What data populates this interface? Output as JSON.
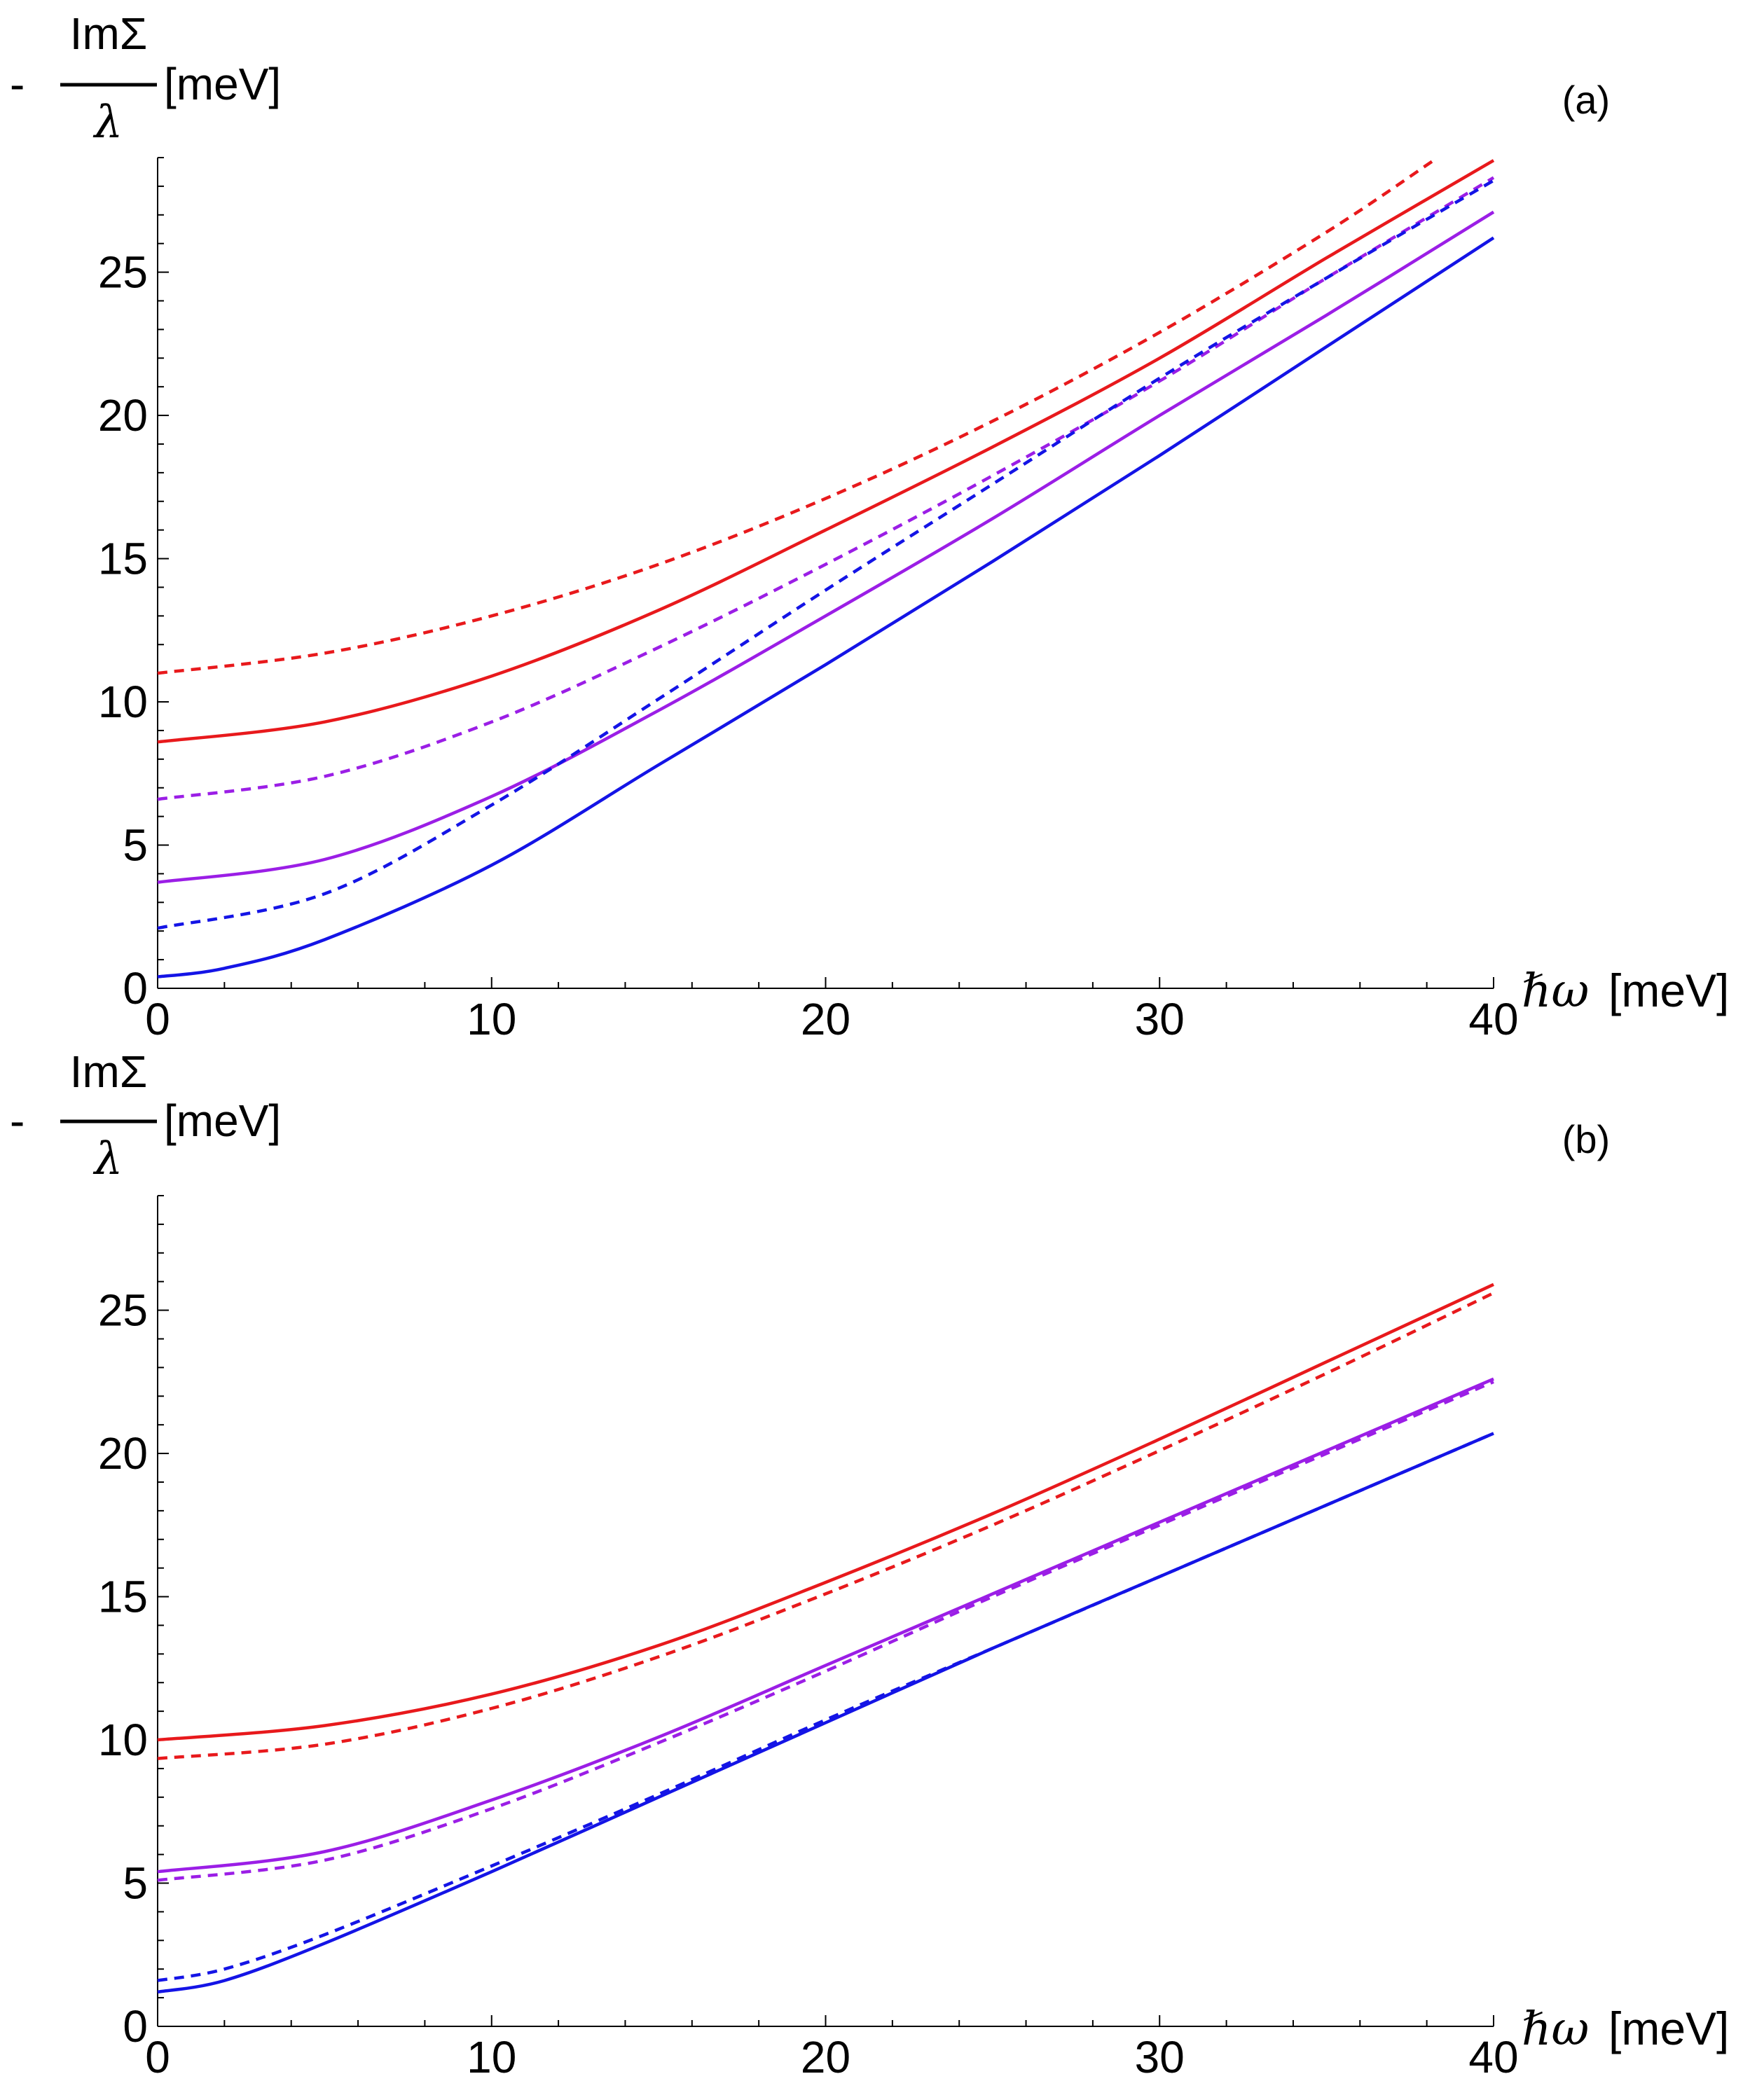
{
  "chart_data": [
    {
      "type": "line",
      "panel_label": "(a)",
      "ylabel": {
        "sign": "-",
        "numerator": "ImΣ",
        "denominator": "λ",
        "unit": "[meV]"
      },
      "xlabel": {
        "symbol": "ℏω",
        "unit": "[meV]"
      },
      "xlim": [
        0,
        40
      ],
      "ylim": [
        0,
        29
      ],
      "x_ticks": [
        "0",
        "10",
        "20",
        "30",
        "40"
      ],
      "y_ticks": [
        "0",
        "5",
        "10",
        "15",
        "20",
        "25"
      ],
      "x_tick_values": [
        0,
        10,
        20,
        30,
        40
      ],
      "y_tick_values": [
        0,
        5,
        10,
        15,
        20,
        25
      ],
      "series": [
        {
          "name": "red solid",
          "color": "#e8191c",
          "style": "solid",
          "x": [
            0,
            5,
            10,
            15,
            20,
            25,
            30,
            35,
            40
          ],
          "y": [
            8.6,
            9.3,
            10.9,
            13.2,
            16.0,
            18.9,
            22.0,
            25.5,
            28.9
          ]
        },
        {
          "name": "red dashed",
          "color": "#e8191c",
          "style": "dashed",
          "x": [
            0,
            5,
            10,
            15,
            20,
            25,
            30,
            35,
            38.2
          ],
          "y": [
            11.0,
            11.7,
            13.0,
            14.8,
            17.1,
            19.8,
            22.9,
            26.4,
            28.9
          ]
        },
        {
          "name": "purple solid",
          "color": "#9b1ee6",
          "style": "solid",
          "x": [
            0,
            5,
            10,
            15,
            20,
            25,
            30,
            35,
            40
          ],
          "y": [
            3.7,
            4.5,
            6.7,
            9.7,
            13.0,
            16.4,
            20.0,
            23.5,
            27.1
          ]
        },
        {
          "name": "purple dashed",
          "color": "#9b1ee6",
          "style": "dashed",
          "x": [
            0,
            5,
            10,
            15,
            20,
            25,
            30,
            35,
            40
          ],
          "y": [
            6.6,
            7.4,
            9.3,
            11.9,
            14.8,
            17.9,
            21.2,
            24.8,
            28.3
          ]
        },
        {
          "name": "blue solid",
          "color": "#1414e6",
          "style": "solid",
          "x": [
            0,
            2,
            5,
            10,
            15,
            20,
            25,
            30,
            35,
            40
          ],
          "y": [
            0.4,
            0.7,
            1.7,
            4.3,
            7.8,
            11.3,
            14.9,
            18.6,
            22.4,
            26.2
          ]
        },
        {
          "name": "blue dashed",
          "color": "#1414e6",
          "style": "dashed",
          "x": [
            0,
            5,
            10,
            15,
            20,
            25,
            30,
            35,
            40
          ],
          "y": [
            2.1,
            3.3,
            6.4,
            10.1,
            13.9,
            17.6,
            21.3,
            24.8,
            28.2
          ]
        }
      ]
    },
    {
      "type": "line",
      "panel_label": "(b)",
      "ylabel": {
        "sign": "-",
        "numerator": "ImΣ",
        "denominator": "λ",
        "unit": "[meV]"
      },
      "xlabel": {
        "symbol": "ℏω",
        "unit": "[meV]"
      },
      "xlim": [
        0,
        40
      ],
      "ylim": [
        0,
        29
      ],
      "x_ticks": [
        "0",
        "10",
        "20",
        "30",
        "40"
      ],
      "y_ticks": [
        "0",
        "5",
        "10",
        "15",
        "20",
        "25"
      ],
      "x_tick_values": [
        0,
        10,
        20,
        30,
        40
      ],
      "y_tick_values": [
        0,
        5,
        10,
        15,
        20,
        25
      ],
      "series": [
        {
          "name": "red solid",
          "color": "#e8191c",
          "style": "solid",
          "x": [
            0,
            5,
            10,
            15,
            20,
            25,
            30,
            35,
            40
          ],
          "y": [
            10.0,
            10.5,
            11.6,
            13.3,
            15.5,
            17.9,
            20.5,
            23.2,
            25.9
          ]
        },
        {
          "name": "red dashed",
          "color": "#e8191c",
          "style": "dashed",
          "x": [
            0,
            5,
            10,
            15,
            20,
            25,
            30,
            35,
            40
          ],
          "y": [
            9.35,
            9.85,
            11.1,
            12.9,
            15.1,
            17.5,
            20.1,
            22.8,
            25.6
          ]
        },
        {
          "name": "purple solid",
          "color": "#9b1ee6",
          "style": "solid",
          "x": [
            0,
            5,
            10,
            15,
            20,
            25,
            30,
            35,
            40
          ],
          "y": [
            5.4,
            6.1,
            7.9,
            10.1,
            12.6,
            15.1,
            17.6,
            20.1,
            22.6
          ]
        },
        {
          "name": "purple dashed",
          "color": "#9b1ee6",
          "style": "dashed",
          "x": [
            0,
            5,
            10,
            15,
            20,
            25,
            30,
            35,
            40
          ],
          "y": [
            5.1,
            5.8,
            7.6,
            9.9,
            12.4,
            15.0,
            17.5,
            20.0,
            22.5
          ]
        },
        {
          "name": "blue solid",
          "color": "#1414e6",
          "style": "solid",
          "x": [
            0,
            2,
            5,
            10,
            15,
            20,
            25,
            30,
            35,
            40
          ],
          "y": [
            1.2,
            1.6,
            2.9,
            5.4,
            8.0,
            10.6,
            13.2,
            15.7,
            18.2,
            20.7
          ]
        },
        {
          "name": "blue dashed",
          "color": "#1414e6",
          "style": "dashed",
          "x": [
            0,
            2,
            5,
            10,
            15,
            20,
            25,
            30,
            35,
            40
          ],
          "y": [
            1.6,
            2.0,
            3.2,
            5.6,
            8.1,
            10.7,
            13.2,
            15.7,
            18.2,
            20.7
          ]
        }
      ]
    }
  ]
}
